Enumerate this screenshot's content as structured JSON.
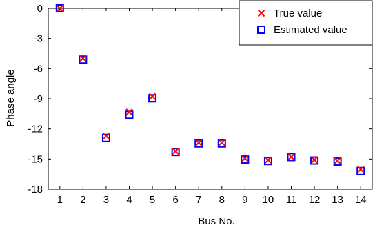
{
  "chart_data": {
    "type": "scatter",
    "title": "",
    "xlabel": "Bus No.",
    "ylabel": "Phase angle",
    "xlim": [
      0.5,
      14.5
    ],
    "ylim": [
      -18,
      0
    ],
    "xticks": [
      1,
      2,
      3,
      4,
      5,
      6,
      7,
      8,
      9,
      10,
      11,
      12,
      13,
      14
    ],
    "yticks": [
      0,
      -3,
      -6,
      -9,
      -12,
      -15,
      -18
    ],
    "grid": false,
    "legend": "top-right",
    "series": [
      {
        "name": "True value",
        "marker": "x",
        "color": "#ff0000",
        "x": [
          1,
          2,
          3,
          4,
          5,
          6,
          7,
          8,
          9,
          10,
          11,
          12,
          13,
          14
        ],
        "y": [
          0,
          -4.98,
          -12.72,
          -10.33,
          -8.78,
          -14.22,
          -13.37,
          -13.36,
          -14.94,
          -15.1,
          -14.79,
          -15.08,
          -15.16,
          -16.03
        ]
      },
      {
        "name": "Estimated value",
        "marker": "square",
        "color": "#0000ff",
        "x": [
          1,
          2,
          3,
          4,
          5,
          6,
          7,
          8,
          9,
          10,
          11,
          12,
          13,
          14
        ],
        "y": [
          0,
          -5.1,
          -12.9,
          -10.6,
          -8.95,
          -14.3,
          -13.45,
          -13.45,
          -15.05,
          -15.2,
          -14.8,
          -15.15,
          -15.25,
          -16.2
        ]
      }
    ]
  }
}
